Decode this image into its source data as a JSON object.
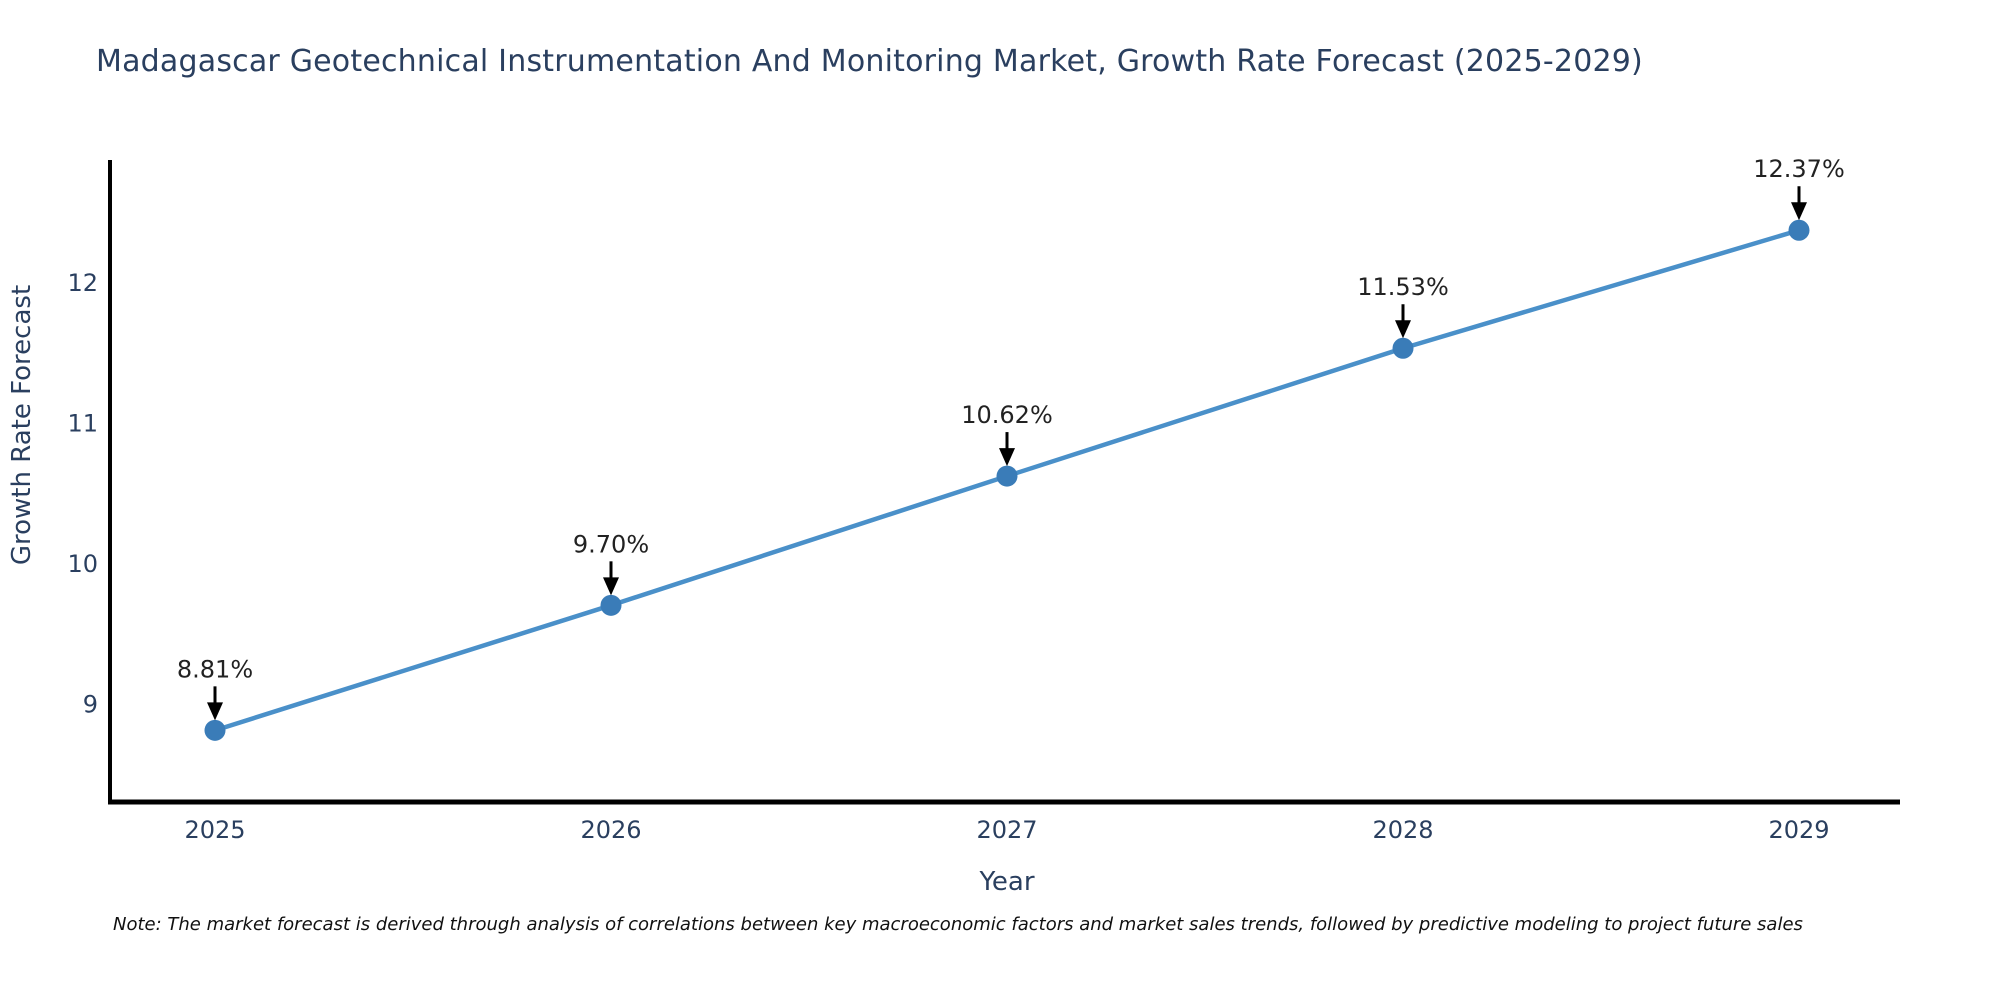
{
  "note": "Note: The market forecast is derived through analysis of correlations between key macroeconomic factors and market sales trends, followed by predictive modeling to project future sales",
  "chart_data": {
    "type": "line",
    "title": "Madagascar Geotechnical Instrumentation And Monitoring Market, Growth Rate Forecast (2025-2029)",
    "x": [
      "2025",
      "2026",
      "2027",
      "2028",
      "2029"
    ],
    "values": [
      8.81,
      9.7,
      10.62,
      11.53,
      12.37
    ],
    "point_labels": [
      "8.81%",
      "9.70%",
      "10.62%",
      "11.53%",
      "12.37%"
    ],
    "xlabel": "Year",
    "ylabel": "Growth Rate Forecast",
    "yticks": [
      9,
      10,
      11,
      12
    ],
    "ylim": [
      8.3,
      12.87
    ],
    "grid": false,
    "legend": "none",
    "markers": true,
    "annotation_arrows": true,
    "colors": {
      "line": "#4a90c9",
      "marker": "#3a7cb8",
      "spine": "#000000",
      "axis_text": "#2a3f5f",
      "annotation_text": "#222222",
      "arrow": "#000000"
    }
  }
}
